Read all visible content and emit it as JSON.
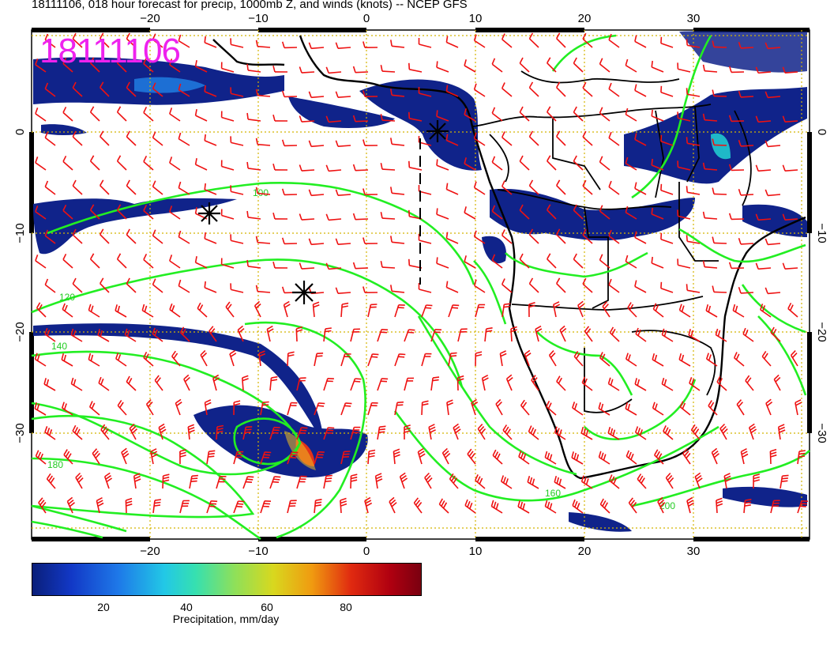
{
  "title": "18111106, 018 hour forecast for precip, 1000mb Z, and winds (knots) -- NCEP GFS",
  "stamp": "18111106",
  "axes": {
    "lon_labels": [
      "−20",
      "−10",
      "0",
      "10",
      "20",
      "30"
    ],
    "lat_labels_left": [
      "0",
      "−10",
      "−20",
      "−30"
    ],
    "lat_labels_right": [
      "0",
      "−10",
      "−20",
      "−30"
    ]
  },
  "colorbar": {
    "title": "Precipitation, mm/day",
    "ticks": [
      "20",
      "40",
      "60",
      "80"
    ]
  },
  "contour_labels": [
    "100",
    "120",
    "140",
    "160",
    "180",
    "200"
  ],
  "colors": {
    "contour": "#22ee22",
    "wind_barbs": "#ee1111",
    "stamp": "#ee22ee",
    "grid": "#d4b400",
    "coast": "#000000"
  }
}
